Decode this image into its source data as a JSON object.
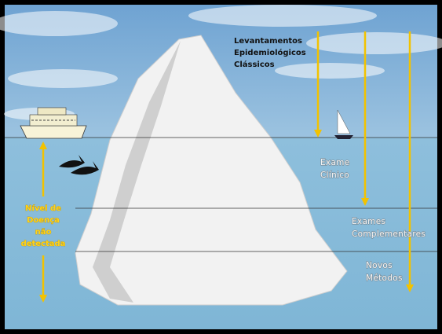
{
  "levels": [
    {
      "label": [
        "Levantamentos",
        "Epidemiológicos",
        "Clássicos"
      ]
    },
    {
      "label": [
        "Exame",
        "Clínico"
      ]
    },
    {
      "label": [
        "Exames",
        "Complementares"
      ]
    },
    {
      "label": [
        "Novos",
        "Métodos"
      ]
    }
  ],
  "undetected": {
    "label": [
      "Nível de",
      "Doença",
      "não",
      "detectada"
    ]
  }
}
